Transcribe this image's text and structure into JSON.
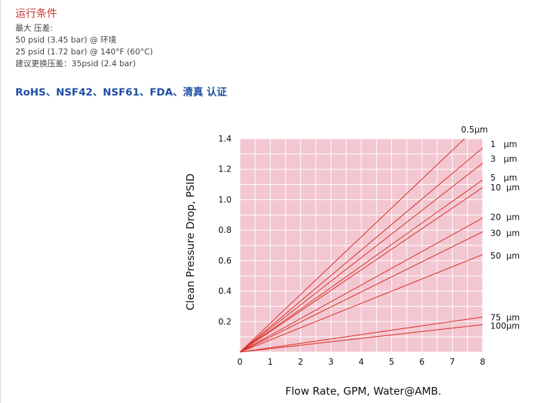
{
  "section": {
    "title": "运行条件",
    "specs": [
      "最大 压差:",
      "50 psid (3.45 bar) @ 环境",
      "25 psid (1.72 bar) @ 140°F (60°C)",
      "建议更换压差：35psid (2.4 bar)"
    ],
    "certifications": "RoHS、NSF42、NSF61、FDA、清真 认证"
  },
  "colors": {
    "section_title": "#c8352b",
    "certifications": "#1f4fa3",
    "plot_background": "#f2c7d1",
    "grid": "#ffffff",
    "series_line": "#d9342b"
  },
  "chart_data": {
    "type": "line",
    "title": "",
    "xlabel": "Flow Rate, GPM, Water@AMB.",
    "ylabel": "Clean Pressure Drop, PSID",
    "xlim": [
      0,
      8
    ],
    "ylim": [
      0,
      1.4
    ],
    "x_ticks": [
      "0",
      "1",
      "2",
      "3",
      "4",
      "5",
      "6",
      "7",
      "8"
    ],
    "y_ticks": [
      "0.2",
      "0.4",
      "0.6",
      "0.8",
      "1.0",
      "1.2",
      "1.4"
    ],
    "grid": true,
    "legend": "right (labels at line ends)",
    "series": [
      {
        "name": "0.5µm",
        "x": [
          0,
          7.4
        ],
        "y": [
          0,
          1.4
        ]
      },
      {
        "name": "1   µm",
        "x": [
          0,
          8
        ],
        "y": [
          0,
          1.34
        ]
      },
      {
        "name": "3   µm",
        "x": [
          0,
          8
        ],
        "y": [
          0,
          1.24
        ]
      },
      {
        "name": "5   µm",
        "x": [
          0,
          8
        ],
        "y": [
          0,
          1.13
        ]
      },
      {
        "name": "10  µm",
        "x": [
          0,
          8
        ],
        "y": [
          0,
          1.08
        ]
      },
      {
        "name": "20  µm",
        "x": [
          0,
          8
        ],
        "y": [
          0,
          0.88
        ]
      },
      {
        "name": "30  µm",
        "x": [
          0,
          8
        ],
        "y": [
          0,
          0.79
        ]
      },
      {
        "name": "50  µm",
        "x": [
          0,
          8
        ],
        "y": [
          0,
          0.64
        ]
      },
      {
        "name": "75  µm",
        "x": [
          0,
          8
        ],
        "y": [
          0,
          0.23
        ]
      },
      {
        "name": "100µm",
        "x": [
          0,
          8
        ],
        "y": [
          0,
          0.18
        ]
      }
    ]
  }
}
